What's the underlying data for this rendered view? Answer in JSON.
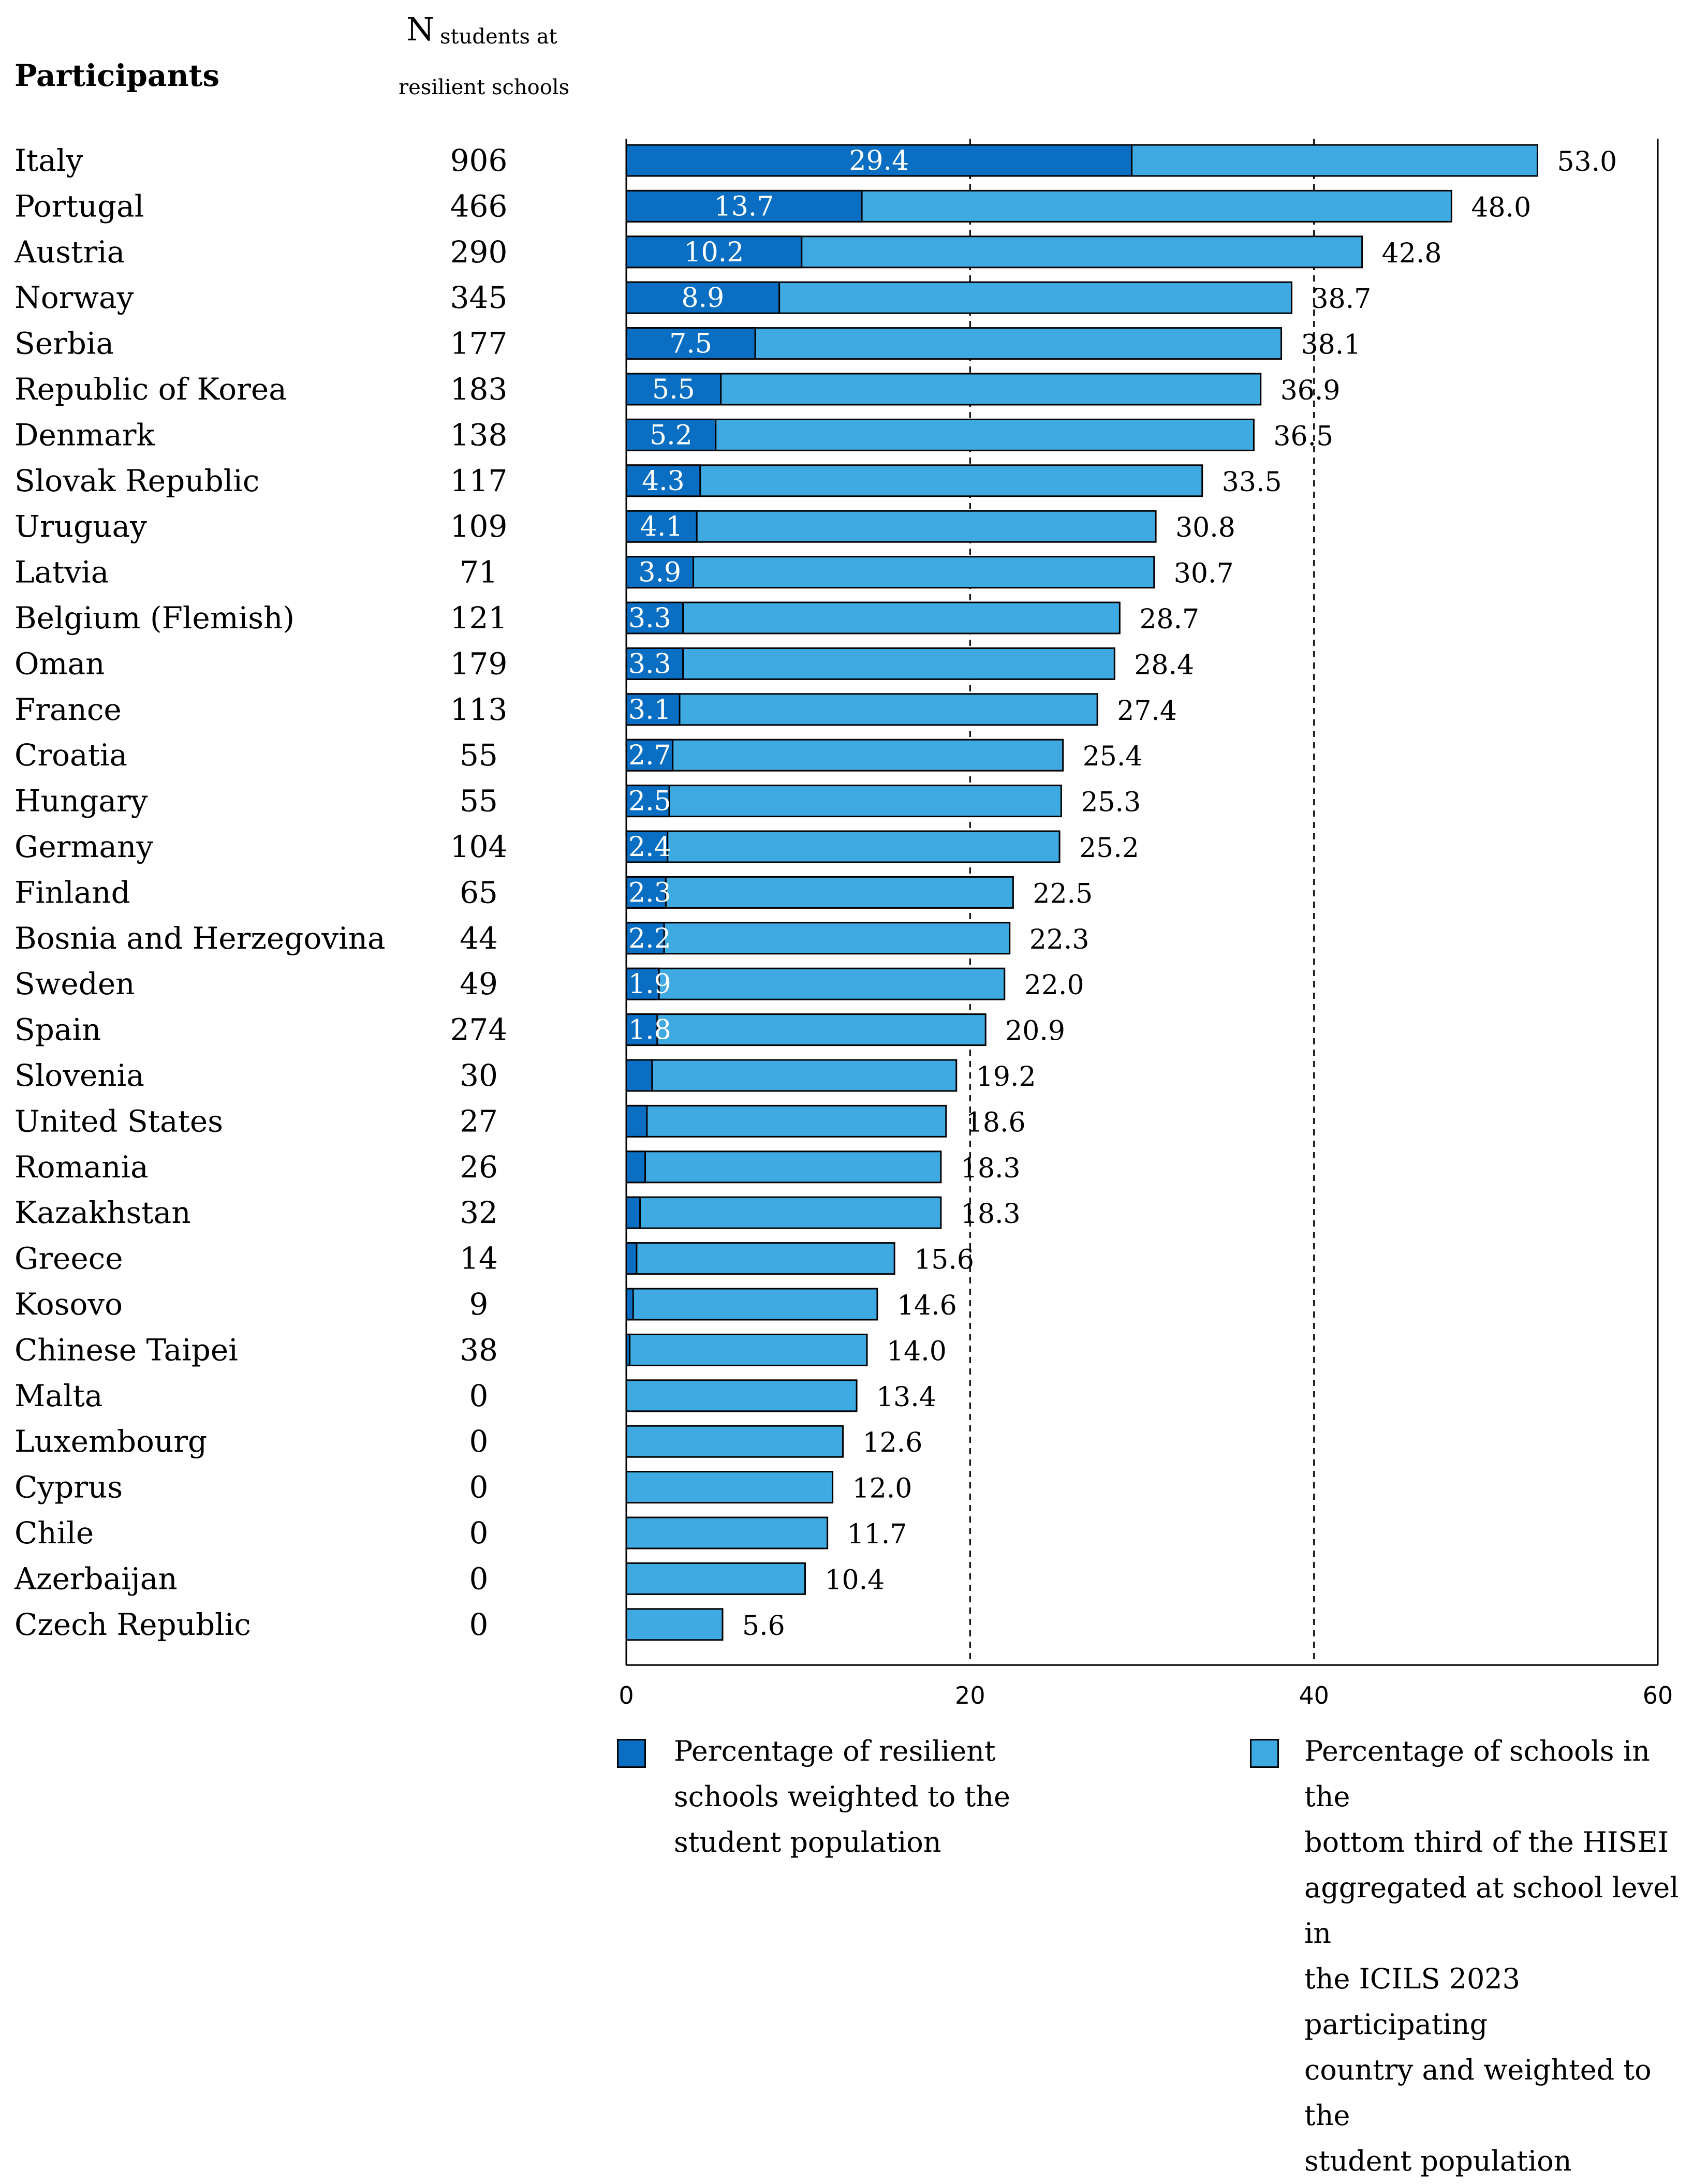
{
  "header": {
    "participants": "Participants",
    "n_big": "N",
    "n_small_1": "students at",
    "n_small_2": "resilient schools"
  },
  "chart_data": {
    "type": "bar",
    "orientation": "horizontal",
    "stacked": "overlay",
    "xlim": [
      0,
      60
    ],
    "xticks": [
      0,
      20,
      40,
      60
    ],
    "gridlines_dashed_at": [
      20,
      40
    ],
    "categories": [
      "Italy",
      "Portugal",
      "Austria",
      "Norway",
      "Serbia",
      "Republic of Korea",
      "Denmark",
      "Slovak Republic",
      "Uruguay",
      "Latvia",
      "Belgium (Flemish)",
      "Oman",
      "France",
      "Croatia",
      "Hungary",
      "Germany",
      "Finland",
      "Bosnia and Herzegovina",
      "Sweden",
      "Spain",
      "Slovenia",
      "United States",
      "Romania",
      "Kazakhstan",
      "Greece",
      "Kosovo",
      "Chinese Taipei",
      "Malta",
      "Luxembourg",
      "Cyprus",
      "Chile",
      "Azerbaijan",
      "Czech Republic"
    ],
    "n_students": [
      "906",
      "466",
      "290",
      "345",
      "177",
      "183",
      "138",
      "117",
      "109",
      "71",
      "121",
      "179",
      "113",
      "55",
      "55",
      "104",
      "65",
      "44",
      "49",
      "274",
      "30",
      "27",
      "26",
      "32",
      "14",
      "9",
      "38",
      "0",
      "0",
      "0",
      "0",
      "0",
      "0"
    ],
    "series": [
      {
        "name": "Percentage of resilient schools weighted to the student population",
        "color": "#0a6fc2",
        "values": [
          29.4,
          13.7,
          10.2,
          8.9,
          7.5,
          5.5,
          5.2,
          4.3,
          4.1,
          3.9,
          3.3,
          3.3,
          3.1,
          2.7,
          2.5,
          2.4,
          2.3,
          2.2,
          1.9,
          1.8,
          1.5,
          1.2,
          1.1,
          0.8,
          0.6,
          0.4,
          0.2,
          0,
          0,
          0,
          0,
          0,
          0
        ],
        "labels": [
          "29.4",
          "13.7",
          "10.2",
          "8.9",
          "7.5",
          "5.5",
          "5.2",
          "4.3",
          "4.1",
          "3.9",
          "3.3",
          "3.3",
          "3.1",
          "2.7",
          "2.5",
          "2.4",
          "2.3",
          "2.2",
          "1.9",
          "1.8",
          "",
          "",
          "",
          "",
          "",
          "",
          "",
          "",
          "",
          "",
          "",
          "",
          ""
        ]
      },
      {
        "name": "Percentage of schools in the bottom third of the HISEI aggregated at school level in the ICILS 2023 participating country and weighted to the student population",
        "color": "#3fa9e1",
        "values": [
          53.0,
          48.0,
          42.8,
          38.7,
          38.1,
          36.9,
          36.5,
          33.5,
          30.8,
          30.7,
          28.7,
          28.4,
          27.4,
          25.4,
          25.3,
          25.2,
          22.5,
          22.3,
          22.0,
          20.9,
          19.2,
          18.6,
          18.3,
          18.3,
          15.6,
          14.6,
          14.0,
          13.4,
          12.6,
          12.0,
          11.7,
          10.4,
          5.6
        ],
        "labels": [
          "53.0",
          "48.0",
          "42.8",
          "38.7",
          "38.1",
          "36.9",
          "36.5",
          "33.5",
          "30.8",
          "30.7",
          "28.7",
          "28.4",
          "27.4",
          "25.4",
          "25.3",
          "25.2",
          "22.5",
          "22.3",
          "22.0",
          "20.9",
          "19.2",
          "18.6",
          "18.3",
          "18.3",
          "15.6",
          "14.6",
          "14.0",
          "13.4",
          "12.6",
          "12.0",
          "11.7",
          "10.4",
          "5.6"
        ]
      }
    ]
  },
  "legend": {
    "item1_lines": [
      "Percentage of resilient",
      "schools weighted to the",
      "student population"
    ],
    "item2_lines": [
      "Percentage of schools in the",
      "bottom third of the HISEI",
      "aggregated at school level in",
      "the ICILS 2023 participating",
      "country and weighted to the",
      "student population"
    ]
  }
}
